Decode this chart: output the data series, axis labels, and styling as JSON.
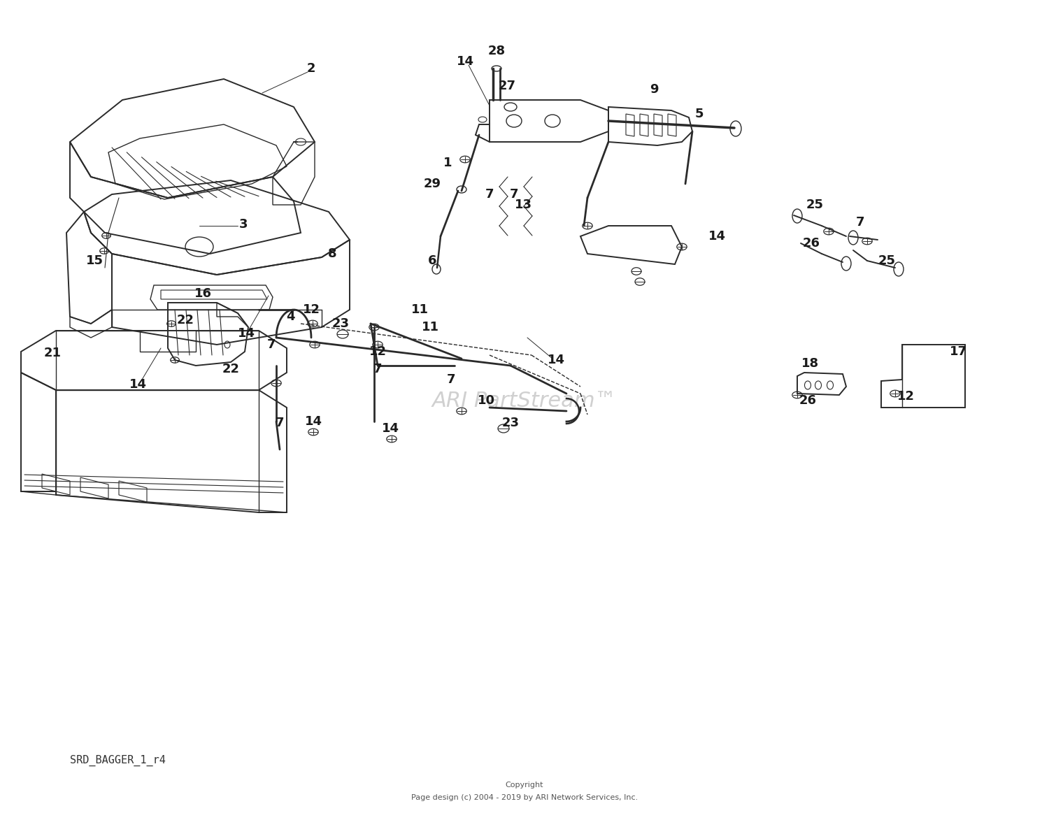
{
  "bg_color": "#ffffff",
  "line_color": "#2a2a2a",
  "watermark_text": "ARI PartStream™",
  "diagram_label": "SRD_BAGGER_1_r4",
  "copyright_line1": "Copyright",
  "copyright_line2": "Page design (c) 2004 - 2019 by ARI Network Services, Inc."
}
